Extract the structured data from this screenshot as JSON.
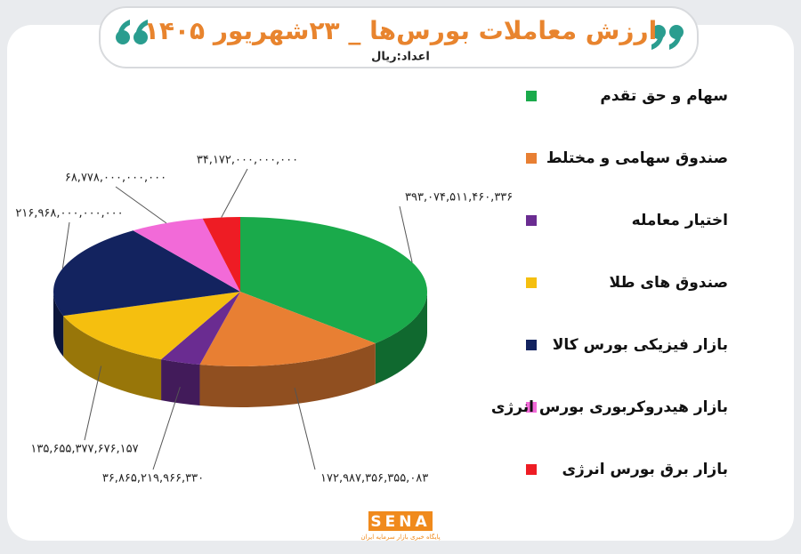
{
  "chart_data": {
    "type": "pie",
    "title": "ارزش معاملات بورس‌ها _ ۲۳شهریور ۱۴۰۵",
    "subtitle": "اعداد:ریال",
    "categories": [
      "سهام و حق تقدم",
      "صندوق سهامی و مختلط",
      "اختیار معامله",
      "صندوق های طلا",
      "بازار فیزیکی بورس کالا",
      "بازار هیدروکربوری بورس انرژی",
      "بازار برق بورس انرژی"
    ],
    "values": [
      393074511460336,
      172987356355083,
      36865219966330,
      135655377676157,
      216968000000000,
      68778000000000,
      34172000000000
    ],
    "value_labels": [
      "۳۹۳,۰۷۴,۵۱۱,۴۶۰,۳۳۶",
      "۱۷۲,۹۸۷,۳۵۶,۳۵۵,۰۸۳",
      "۳۶,۸۶۵,۲۱۹,۹۶۶,۳۳۰",
      "۱۳۵,۶۵۵,۳۷۷,۶۷۶,۱۵۷",
      "۲۱۶,۹۶۸,۰۰۰,۰۰۰,۰۰۰",
      "۶۸,۷۷۸,۰۰۰,۰۰۰,۰۰۰",
      "۳۴,۱۷۲,۰۰۰,۰۰۰,۰۰۰"
    ],
    "colors": [
      "#1aaa4b",
      "#e87f33",
      "#6a2c91",
      "#f5bf0f",
      "#13235f",
      "#f26ad8",
      "#ee1c24"
    ],
    "legend": "right"
  },
  "footer": {
    "logo": "SENA",
    "tagline": "پایگاه خبری بازار سرمایه ایران"
  }
}
